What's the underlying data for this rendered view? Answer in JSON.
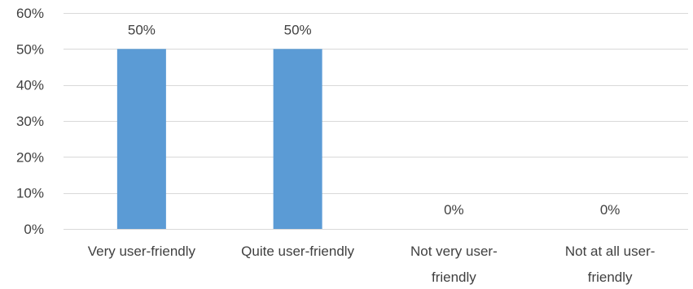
{
  "chart_data": {
    "type": "bar",
    "categories": [
      [
        "Very user-friendly"
      ],
      [
        "Quite user-friendly"
      ],
      [
        "Not very user-",
        "friendly"
      ],
      [
        "Not at all user-",
        "friendly"
      ]
    ],
    "values": [
      50,
      50,
      0,
      0
    ],
    "data_labels": [
      "50%",
      "50%",
      "0%",
      "0%"
    ],
    "yticks": [
      0,
      10,
      20,
      30,
      40,
      50,
      60
    ],
    "ytick_labels": [
      "0%",
      "10%",
      "20%",
      "30%",
      "40%",
      "50%",
      "60%"
    ],
    "ylim": [
      0,
      60
    ],
    "title": "",
    "xlabel": "",
    "ylabel": "",
    "grid": true,
    "legend": "none",
    "bar_color": "#5b9bd5"
  }
}
